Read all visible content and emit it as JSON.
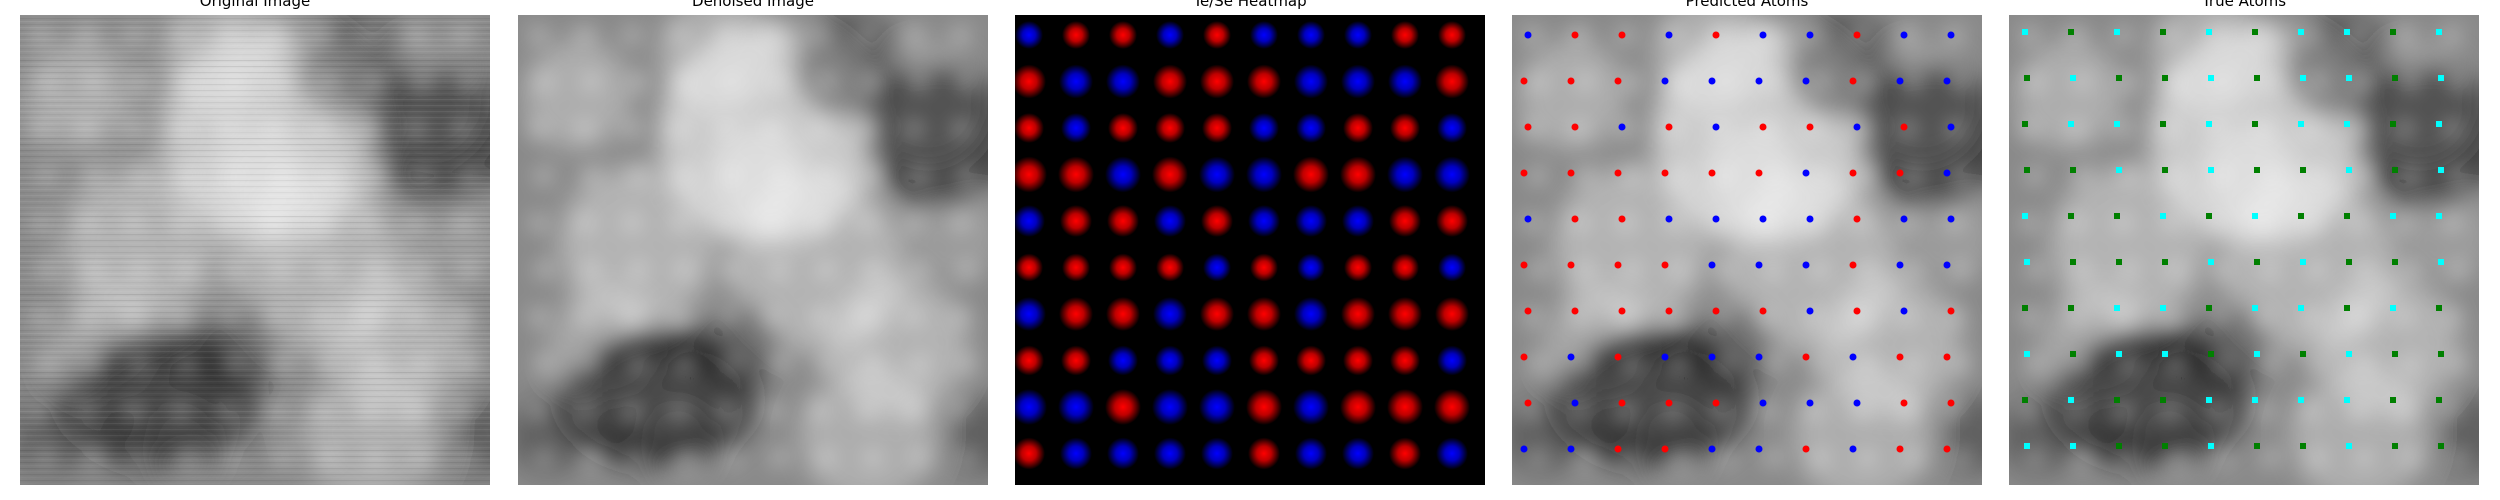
{
  "panels": [
    {
      "title": "Original Image"
    },
    {
      "title": "Denoised Image"
    },
    {
      "title": "Te/Se Heatmap"
    },
    {
      "title": "Predicted Atoms"
    },
    {
      "title": "True Atoms"
    }
  ],
  "colors": {
    "te": "#ff0000",
    "se": "#0000ff",
    "true_a": "#00ffff",
    "true_b": "#008000"
  },
  "heatmap_grid": [
    "BRRBRBBBRR",
    "RBBRRRBBBR",
    "RBRRRBBRRB",
    "RRBRBBRRBB",
    "BRRBRBBBRR",
    "RRRRBRBRRB",
    "BRRBRRBRRR",
    "RRBBBRRRRB",
    "BBRBBRBRRR",
    "RBBBBRBBRB"
  ],
  "predicted_grid": [
    "BRRBRBBRBB",
    "RRRBBBBRBB",
    "RRBRBRRBRB",
    "RRRRRRBRRB",
    "BRRBBBBRBB",
    "RRRRBBBRBB",
    "RRRRRRBRBR",
    "RBRBBBRBRR",
    "RBRRRBBBRR",
    "BBRRBBRBRR"
  ],
  "true_grid": [
    "CGCGCGCCGC",
    "GCGGCGCCGC",
    "GCCGCGCCGC",
    "GGCGCGGCGC",
    "CGGCGCGGCC",
    "CGGGCGCGGC",
    "GGCCGCCGCG",
    "CGCCGCGCGG",
    "GCGGCCCCGG",
    "CCGGCGGCGG"
  ]
}
